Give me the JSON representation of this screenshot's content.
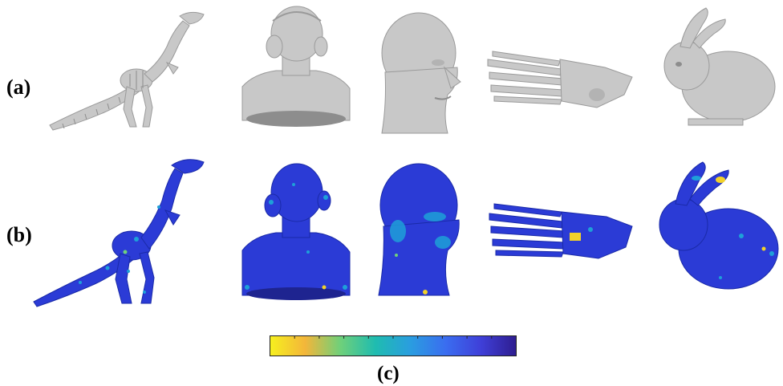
{
  "labels": {
    "row_a": "(a)",
    "row_b": "(b)",
    "caption": "(c)"
  },
  "row_a_models": [
    "dinosaur-skeleton",
    "girl-bust",
    "mannequin-head",
    "foot-bones",
    "stanford-bunny"
  ],
  "row_b_models": [
    "dinosaur-skeleton",
    "girl-bust",
    "mannequin-head",
    "foot-bones",
    "stanford-bunny"
  ],
  "colors": {
    "mesh_gray": "#c8c8c8",
    "mesh_dark": "#8d8d8d",
    "map_base": "#2b3bd6",
    "map_mid": "#1ea0d8",
    "map_hot": "#f2d22a",
    "colorbar_stops": [
      "#f6f01e",
      "#f3b63a",
      "#6fd07a",
      "#1fbcb0",
      "#2a9de0",
      "#3a6df0",
      "#3f3fd8",
      "#2e1d8f"
    ]
  },
  "colorbar": {
    "ticks": 10
  }
}
